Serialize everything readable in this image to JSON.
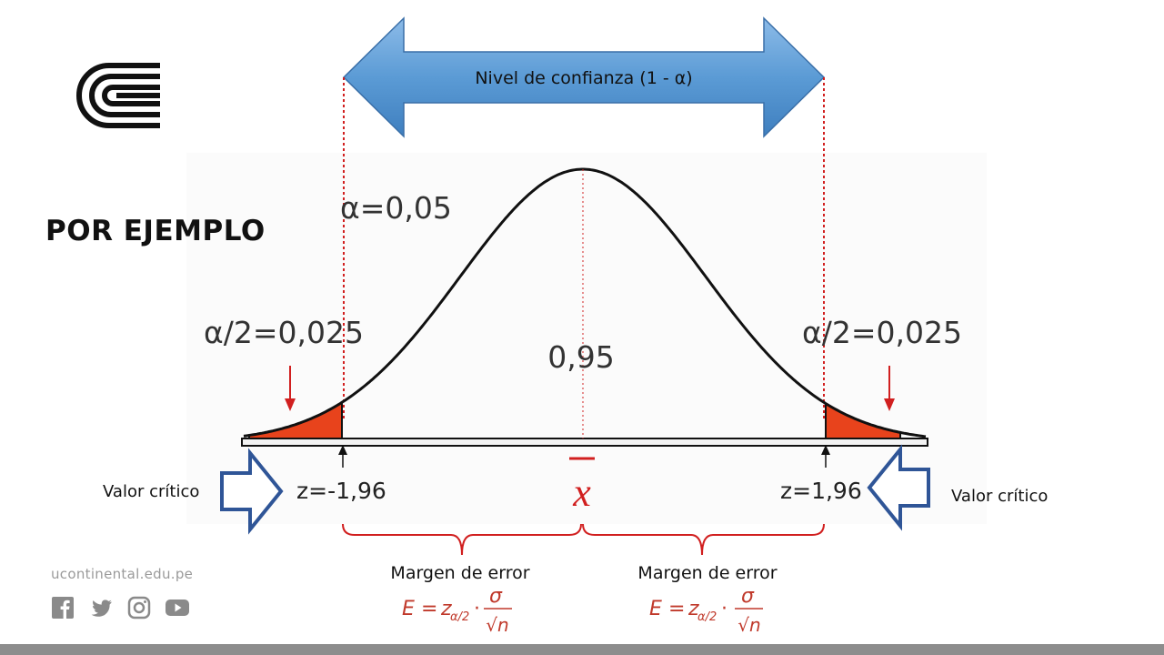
{
  "heading": "POR EJEMPLO",
  "confidence_label": "Nivel de confianza (1 - α)",
  "alpha_label": "α=0,05",
  "left_tail_label": "α/2=0,025",
  "right_tail_label": "α/2=0,025",
  "center_prob": "0,95",
  "z_left": "z=-1,96",
  "z_right": "z=1,96",
  "mean_symbol": "x",
  "critical_left": "Valor crítico",
  "critical_right": "Valor crítico",
  "margin_left": "Margen de error",
  "margin_right": "Margen de error",
  "formula": {
    "lhs": "E",
    "eq": "=",
    "z": "z",
    "sub": "α/2",
    "dot": "·",
    "num": "σ",
    "den": "√n"
  },
  "website": "ucontinental.edu.pe",
  "social_icons": [
    "facebook-icon",
    "twitter-icon",
    "instagram-icon",
    "youtube-icon"
  ],
  "colors": {
    "arrow_fill": "#5b9bd5",
    "tail_fill": "#e8431c",
    "red": "#d11f1f",
    "block_arrow": "#2f5597",
    "footer": "#8d8d8d"
  }
}
